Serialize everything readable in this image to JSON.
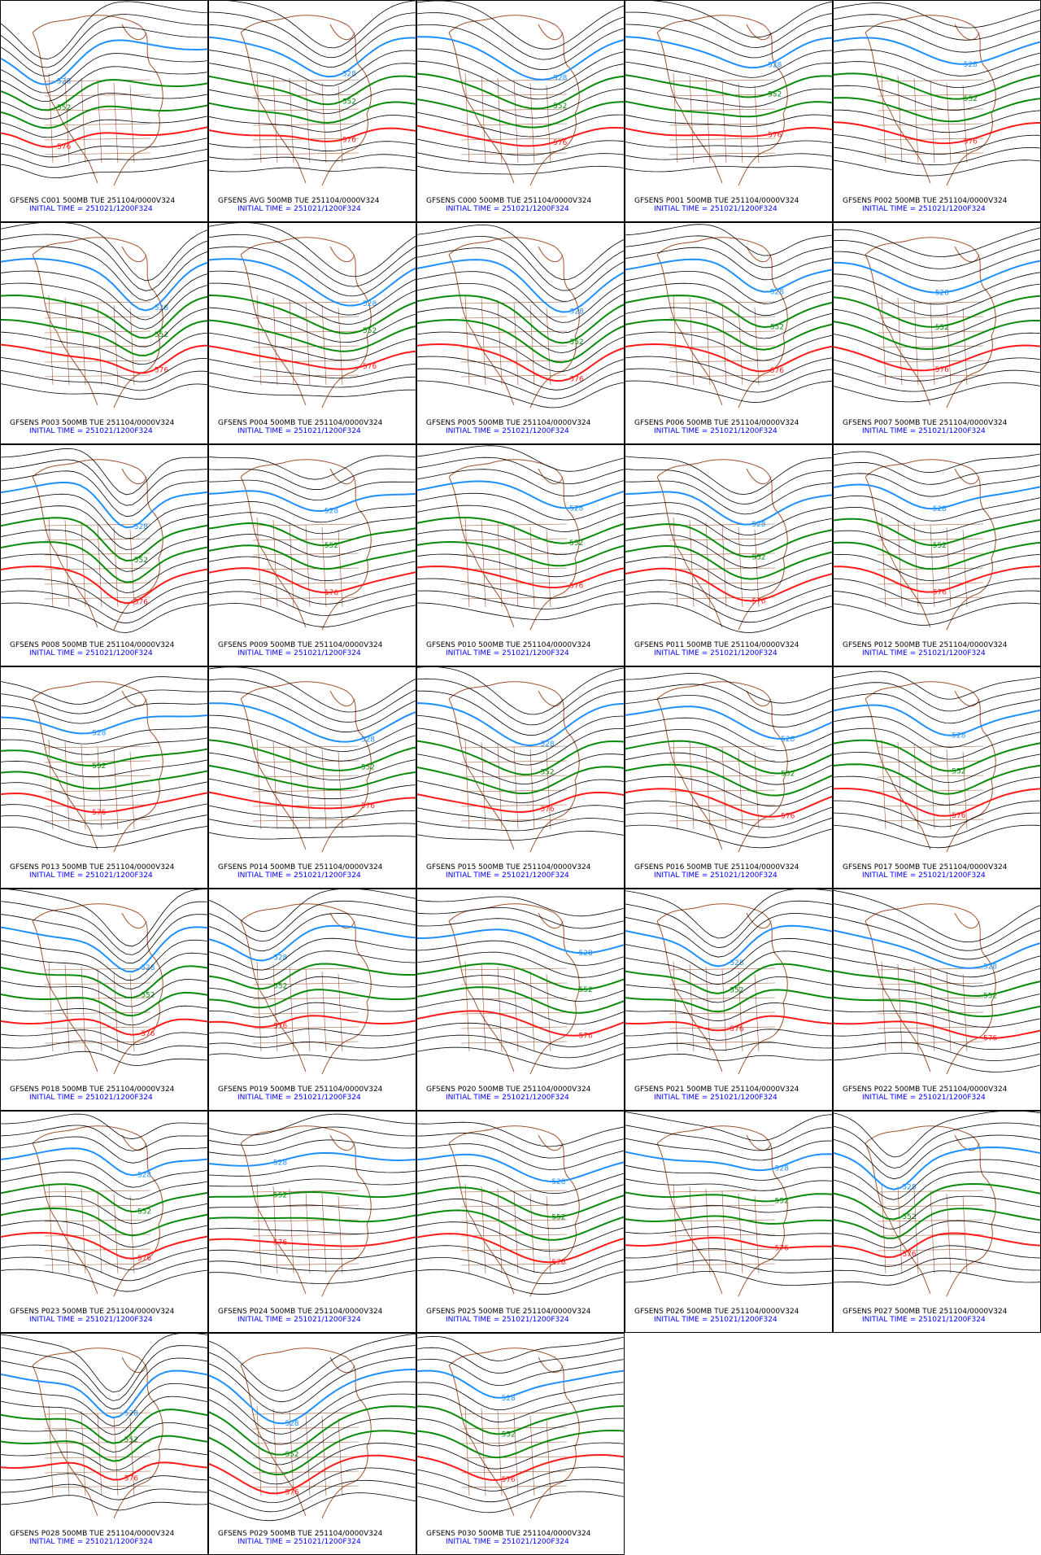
{
  "panels": [
    {
      "title": "GFSENS C001 500MB TUE 251104/0000V324",
      "subtitle": "INITIAL TIME = 251021/1200F324"
    },
    {
      "title": "GFSENS AVG 500MB TUE 251104/0000V324",
      "subtitle": "INITIAL TIME = 251021/1200F324"
    },
    {
      "title": "GFSENS C000 500MB TUE 251104/0000V324",
      "subtitle": "INITIAL TIME = 251021/1200F324"
    },
    {
      "title": "GFSENS P001 500MB TUE 251104/0000V324",
      "subtitle": "INITIAL TIME = 251021/1200F324"
    },
    {
      "title": "GFSENS P002 500MB TUE 251104/0000V324",
      "subtitle": "INITIAL TIME = 251021/1200F324"
    },
    {
      "title": "GFSENS P003 500MB TUE 251104/0000V324",
      "subtitle": "INITIAL TIME = 251021/1200F324"
    },
    {
      "title": "GFSENS P004 500MB TUE 251104/0000V324",
      "subtitle": "INITIAL TIME = 251021/1200F324"
    },
    {
      "title": "GFSENS P005 500MB TUE 251104/0000V324",
      "subtitle": "INITIAL TIME = 251021/1200F324"
    },
    {
      "title": "GFSENS P006 500MB TUE 251104/0000V324",
      "subtitle": "INITIAL TIME = 251021/1200F324"
    },
    {
      "title": "GFSENS P007 500MB TUE 251104/0000V324",
      "subtitle": "INITIAL TIME = 251021/1200F324"
    },
    {
      "title": "GFSENS P008 500MB TUE 251104/0000V324",
      "subtitle": "INITIAL TIME = 251021/1200F324"
    },
    {
      "title": "GFSENS P009 500MB TUE 251104/0000V324",
      "subtitle": "INITIAL TIME = 251021/1200F324"
    },
    {
      "title": "GFSENS P010 500MB TUE 251104/0000V324",
      "subtitle": "INITIAL TIME = 251021/1200F324"
    },
    {
      "title": "GFSENS P011 500MB TUE 251104/0000V324",
      "subtitle": "INITIAL TIME = 251021/1200F324"
    },
    {
      "title": "GFSENS P012 500MB TUE 251104/0000V324",
      "subtitle": "INITIAL TIME = 251021/1200F324"
    },
    {
      "title": "GFSENS P013 500MB TUE 251104/0000V324",
      "subtitle": "INITIAL TIME = 251021/1200F324"
    },
    {
      "title": "GFSENS P014 500MB TUE 251104/0000V324",
      "subtitle": "INITIAL TIME = 251021/1200F324"
    },
    {
      "title": "GFSENS P015 500MB TUE 251104/0000V324",
      "subtitle": "INITIAL TIME = 251021/1200F324"
    },
    {
      "title": "GFSENS P016 500MB TUE 251104/0000V324",
      "subtitle": "INITIAL TIME = 251021/1200F324"
    },
    {
      "title": "GFSENS P017 500MB TUE 251104/0000V324",
      "subtitle": "INITIAL TIME = 251021/1200F324"
    },
    {
      "title": "GFSENS P018 500MB TUE 251104/0000V324",
      "subtitle": "INITIAL TIME = 251021/1200F324"
    },
    {
      "title": "GFSENS P019 500MB TUE 251104/0000V324",
      "subtitle": "INITIAL TIME = 251021/1200F324"
    },
    {
      "title": "GFSENS P020 500MB TUE 251104/0000V324",
      "subtitle": "INITIAL TIME = 251021/1200F324"
    },
    {
      "title": "GFSENS P021 500MB TUE 251104/0000V324",
      "subtitle": "INITIAL TIME = 251021/1200F324"
    },
    {
      "title": "GFSENS P022 500MB TUE 251104/0000V324",
      "subtitle": "INITIAL TIME = 251021/1200F324"
    },
    {
      "title": "GFSENS P023 500MB TUE 251104/0000V324",
      "subtitle": "INITIAL TIME = 251021/1200F324"
    },
    {
      "title": "GFSENS P024 500MB TUE 251104/0000V324",
      "subtitle": "INITIAL TIME = 251021/1200F324"
    },
    {
      "title": "GFSENS P025 500MB TUE 251104/0000V324",
      "subtitle": "INITIAL TIME = 251021/1200F324"
    },
    {
      "title": "GFSENS P026 500MB TUE 251104/0000V324",
      "subtitle": "INITIAL TIME = 251021/1200F324"
    },
    {
      "title": "GFSENS P027 500MB TUE 251104/0000V324",
      "subtitle": "INITIAL TIME = 251021/1200F324"
    },
    {
      "title": "GFSENS P028 500MB TUE 251104/0000V324",
      "subtitle": "INITIAL TIME = 251021/1200F324"
    },
    {
      "title": "GFSENS P029 500MB TUE 251104/0000V324",
      "subtitle": "INITIAL TIME = 251021/1200F324"
    },
    {
      "title": "GFSENS P030 500MB TUE 251104/0000V324",
      "subtitle": "INITIAL TIME = 251021/1200F324"
    }
  ],
  "contour_labels": [
    {
      "label": "528",
      "color": "#1e8fff"
    },
    {
      "label": "552",
      "color": "#0a8a0a"
    },
    {
      "label": "576",
      "color": "#ff1a1a"
    }
  ]
}
